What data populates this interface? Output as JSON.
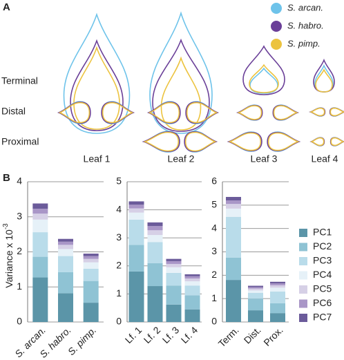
{
  "panel_a": {
    "label": "A",
    "legend": [
      {
        "name": "S. arcan.",
        "color": "#6ec3ea"
      },
      {
        "name": "S. habro.",
        "color": "#6a3f98"
      },
      {
        "name": "S. pimp.",
        "color": "#ecc33f"
      }
    ],
    "rows": [
      "Terminal",
      "Distal",
      "Proximal"
    ],
    "columns": [
      "Leaf 1",
      "Leaf 2",
      "Leaf 3",
      "Leaf 4"
    ]
  },
  "panel_b_label": "B",
  "chart_data": [
    {
      "type": "bar",
      "stacked": true,
      "ylabel": "Variance x 10",
      "ylabel_exponent": "-3",
      "categories": [
        "S. arcan.",
        "S. habro.",
        "S. pimp."
      ],
      "ylim": [
        0,
        4
      ],
      "yticks": [
        0,
        1,
        2,
        3,
        4
      ],
      "grid": true,
      "series": [
        {
          "color": "#5b95a8",
          "values": [
            1.27,
            0.82,
            0.55
          ]
        },
        {
          "color": "#8fc3d4",
          "values": [
            0.59,
            0.6,
            0.62
          ]
        },
        {
          "color": "#b9dcea",
          "values": [
            0.7,
            0.46,
            0.35
          ]
        },
        {
          "color": "#e6f1f8",
          "values": [
            0.36,
            0.2,
            0.18
          ]
        },
        {
          "color": "#d6d0e6",
          "values": [
            0.17,
            0.12,
            0.1
          ]
        },
        {
          "color": "#a996c7",
          "values": [
            0.14,
            0.09,
            0.08
          ]
        },
        {
          "color": "#6b5b9a",
          "values": [
            0.15,
            0.08,
            0.07
          ]
        }
      ]
    },
    {
      "type": "bar",
      "stacked": true,
      "categories": [
        "Lf. 1",
        "Lf. 2",
        "Lf. 3",
        "Lf. 4"
      ],
      "ylim": [
        0,
        5
      ],
      "yticks": [
        0,
        1,
        2,
        3,
        4,
        5
      ],
      "grid": true,
      "series": [
        {
          "color": "#5b95a8",
          "values": [
            1.8,
            1.28,
            0.62,
            0.45
          ]
        },
        {
          "color": "#8fc3d4",
          "values": [
            0.95,
            0.82,
            0.68,
            0.5
          ]
        },
        {
          "color": "#b9dcea",
          "values": [
            0.9,
            0.75,
            0.45,
            0.35
          ]
        },
        {
          "color": "#e6f1f8",
          "values": [
            0.25,
            0.25,
            0.2,
            0.15
          ]
        },
        {
          "color": "#d6d0e6",
          "values": [
            0.15,
            0.17,
            0.12,
            0.1
          ]
        },
        {
          "color": "#a996c7",
          "values": [
            0.13,
            0.15,
            0.1,
            0.08
          ]
        },
        {
          "color": "#6b5b9a",
          "values": [
            0.12,
            0.13,
            0.08,
            0.07
          ]
        }
      ]
    },
    {
      "type": "bar",
      "stacked": true,
      "categories": [
        "Term.",
        "Dist.",
        "Prox."
      ],
      "ylim": [
        0,
        6
      ],
      "yticks": [
        0,
        1,
        2,
        3,
        4,
        5,
        6
      ],
      "grid": true,
      "series": [
        {
          "name": "PC1",
          "color": "#5b95a8",
          "values": [
            1.8,
            0.5,
            0.38
          ]
        },
        {
          "name": "PC2",
          "color": "#8fc3d4",
          "values": [
            0.95,
            0.5,
            0.42
          ]
        },
        {
          "name": "PC3",
          "color": "#b9dcea",
          "values": [
            1.75,
            0.25,
            0.5
          ]
        },
        {
          "name": "PC4",
          "color": "#e6f1f8",
          "values": [
            0.35,
            0.1,
            0.17
          ]
        },
        {
          "name": "PC5",
          "color": "#d6d0e6",
          "values": [
            0.2,
            0.08,
            0.1
          ]
        },
        {
          "name": "PC6",
          "color": "#a996c7",
          "values": [
            0.15,
            0.06,
            0.08
          ]
        },
        {
          "name": "PC7",
          "color": "#6b5b9a",
          "values": [
            0.15,
            0.06,
            0.07
          ]
        }
      ]
    }
  ]
}
